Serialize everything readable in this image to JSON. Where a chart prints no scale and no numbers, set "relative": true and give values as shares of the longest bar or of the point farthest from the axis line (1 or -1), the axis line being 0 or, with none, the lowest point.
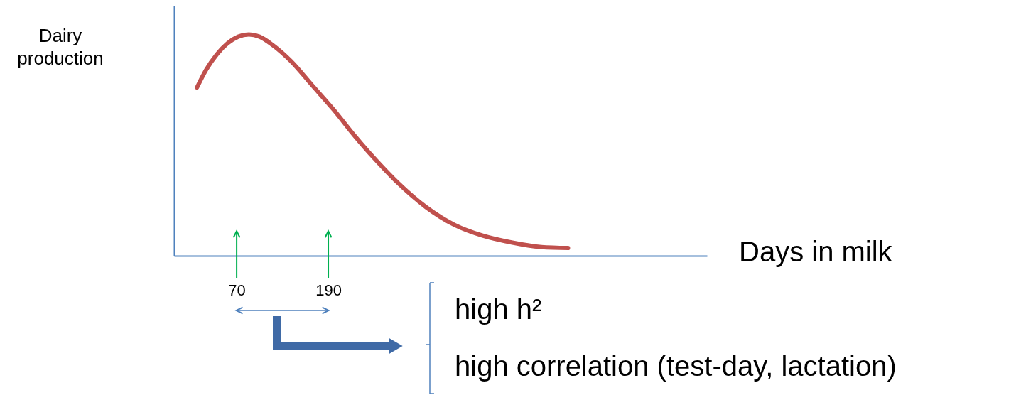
{
  "chart_data": {
    "type": "line",
    "relative": true,
    "xlabel": "Days in milk",
    "ylabel": "Dairy production",
    "color": "#c0504d",
    "xlim": [
      -12,
      686
    ],
    "xticks": [
      70,
      190
    ],
    "ref_lines": [
      {
        "axis": "x",
        "value": 70,
        "color": "#00b050"
      },
      {
        "axis": "x",
        "value": 190,
        "color": "#00b050"
      }
    ],
    "x": [
      18,
      30,
      44,
      58,
      72,
      86,
      100,
      118,
      141,
      169,
      197,
      225,
      253,
      281,
      318,
      355,
      393,
      430,
      467,
      504
    ],
    "values": [
      0.76,
      0.84,
      0.91,
      0.96,
      0.99,
      1.0,
      0.99,
      0.95,
      0.88,
      0.77,
      0.66,
      0.54,
      0.43,
      0.33,
      0.22,
      0.14,
      0.09,
      0.06,
      0.04,
      0.035
    ],
    "annotations": [
      "high h²",
      "high correlation (test-day, lactation)"
    ]
  }
}
